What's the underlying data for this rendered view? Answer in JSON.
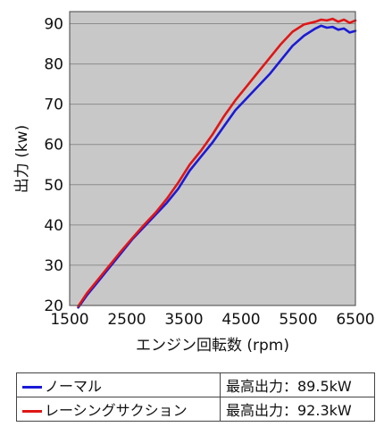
{
  "chart_data": {
    "type": "line",
    "title": "",
    "xlabel": "エンジン回転数 (rpm)",
    "ylabel": "出力 (kw)",
    "xlim": [
      1500,
      6500
    ],
    "ylim": [
      20,
      93
    ],
    "x_ticks": [
      "1500",
      "2500",
      "3500",
      "4500",
      "5500",
      "6500"
    ],
    "y_ticks": [
      "20",
      "30",
      "40",
      "50",
      "60",
      "70",
      "80",
      "90"
    ],
    "grid": "horizontal",
    "legend": "table-bottom",
    "plot_background": "#c8c8c8",
    "series": [
      {
        "name": "ノーマル",
        "color": "#1a1ad6",
        "max_label": "最高出力：89.5kW",
        "x": [
          1650,
          1800,
          2000,
          2200,
          2400,
          2600,
          2800,
          3000,
          3200,
          3400,
          3600,
          3800,
          4000,
          4200,
          4400,
          4600,
          4800,
          5000,
          5200,
          5400,
          5600,
          5800,
          5900,
          6000,
          6100,
          6200,
          6300,
          6400,
          6500
        ],
        "y": [
          19.5,
          22.5,
          26.0,
          29.5,
          33.0,
          36.5,
          39.5,
          42.5,
          45.5,
          49.0,
          53.5,
          57.0,
          60.5,
          64.5,
          68.5,
          71.5,
          74.5,
          77.5,
          81.0,
          84.5,
          87.0,
          88.8,
          89.5,
          89.0,
          89.2,
          88.5,
          88.8,
          87.8,
          88.2
        ]
      },
      {
        "name": "レーシングサクション",
        "color": "#e01616",
        "max_label": "最高出力：92.3kW",
        "x": [
          1650,
          1800,
          2000,
          2200,
          2400,
          2600,
          2800,
          3000,
          3200,
          3400,
          3600,
          3800,
          4000,
          4200,
          4400,
          4600,
          4800,
          5000,
          5200,
          5400,
          5600,
          5800,
          5900,
          6000,
          6100,
          6200,
          6300,
          6400,
          6500
        ],
        "y": [
          19.8,
          23.0,
          26.5,
          30.0,
          33.5,
          36.8,
          40.0,
          43.0,
          46.5,
          50.5,
          55.0,
          58.5,
          62.5,
          67.0,
          71.0,
          74.5,
          78.0,
          81.5,
          85.0,
          88.0,
          89.8,
          90.5,
          91.0,
          90.8,
          91.2,
          90.5,
          91.0,
          90.2,
          90.8
        ]
      }
    ]
  }
}
